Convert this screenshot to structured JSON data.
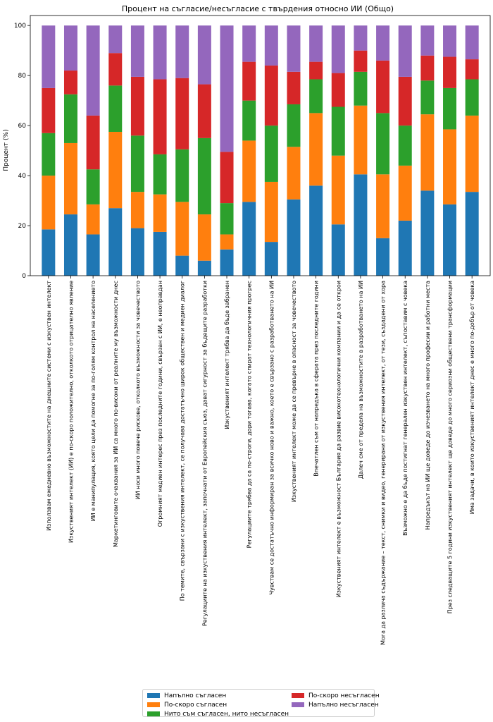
{
  "chart_data": {
    "type": "bar",
    "stacked": true,
    "title": "Процент на съгласие/несъгласие с твърдения относно ИИ (Общо)",
    "ylabel": "Процент (%)",
    "xlabel": "",
    "ylim": [
      0,
      104
    ],
    "yticks": [
      "0",
      "20",
      "40",
      "60",
      "80",
      "100"
    ],
    "grid": false,
    "legend_position": "bottom-center",
    "categories": [
      "Използвам ежедневно възможностите на днешните системи с изкуствен интелект",
      "Изкуственият интелект (ИИ) е по-скоро положително, отколкото отрицателно явление",
      "ИИ е манипулация, която цели да помогне за по-голям контрол на населението",
      "Маркетинговите очаквания за ИИ са много по-високи от реалните му възможности днес",
      "ИИ носи много повече рискове, отколкото възможности за човечеството",
      "Огромният медиен интерес през последните години, свързан с ИИ, е неоправдан",
      "По темите, свързани с изкуствения интелект, се получава достатъчно широк обществен и медиен диалог",
      "Регулациите на изкуствения интелект, започнати от Европейския съюз, дават сигурност за бъдещите разработки",
      "Изкуственият интелект трябва да бъде забранен",
      "Регулациите трябва да са по-строги, дори тогава, когато спират технологичния прогрес",
      "Чувствам се достатъчно информиран за всичко ново и важно, което е свързано с разработването на ИИ",
      "Изкуственият интелект може да се превърне в опасност за човечеството",
      "Впечатлен съм от напредъка в сферата през последните години",
      "Изкуственият интелект е възможност България да развие високотехнологични компании и да се открои",
      "Далеч сме от предела на възможностите в разработването на ИИ",
      "Мога да различа съдържание – текст, снимки и видео, генерирани от изкуствения интелект, от тези, създадени от хора",
      "Възможно е да бъде постигнат генерален изкуствен интелект, съпоставим с човека",
      "Напредъкът на ИИ ще доведе до изчезването на много професии и работни места",
      "През следващите 5 години изкуственият интелект ще доведе до много сериозни обществени трансформации",
      "Има задачи, в които изкуственият интелект днес е много по-добър от човека"
    ],
    "series": [
      {
        "name": "Напълно съгласен",
        "color": "#1f77b4",
        "values": [
          18.5,
          24.5,
          16.5,
          27.0,
          19.0,
          17.5,
          8.0,
          6.0,
          10.5,
          29.5,
          13.5,
          30.5,
          36.0,
          20.5,
          40.5,
          15.0,
          22.0,
          34.0,
          28.5,
          33.5
        ]
      },
      {
        "name": "По-скоро съгласен",
        "color": "#ff7f0e",
        "values": [
          21.5,
          28.5,
          12.0,
          30.5,
          14.5,
          15.0,
          21.5,
          18.5,
          6.0,
          24.5,
          24.0,
          21.0,
          29.0,
          27.5,
          27.5,
          25.5,
          22.0,
          30.5,
          30.0,
          30.5
        ]
      },
      {
        "name": "Нито съм съгласен, нито несъгласен",
        "color": "#2ca02c",
        "values": [
          17.0,
          19.5,
          14.0,
          18.5,
          22.5,
          16.0,
          21.0,
          30.5,
          12.5,
          16.0,
          22.5,
          17.0,
          13.5,
          19.5,
          13.5,
          24.5,
          16.0,
          13.5,
          16.5,
          14.5
        ]
      },
      {
        "name": "По-скоро несъгласен",
        "color": "#d62728",
        "values": [
          18.0,
          9.5,
          21.5,
          13.0,
          23.5,
          30.0,
          28.5,
          21.5,
          20.5,
          15.5,
          24.0,
          13.0,
          7.0,
          13.5,
          8.5,
          21.0,
          19.5,
          10.0,
          12.5,
          8.0
        ]
      },
      {
        "name": "Напълно несъгласен",
        "color": "#9467bd",
        "values": [
          25.0,
          18.0,
          36.0,
          11.0,
          20.5,
          21.5,
          21.0,
          23.5,
          50.5,
          14.5,
          16.0,
          18.5,
          14.5,
          19.0,
          10.0,
          14.0,
          20.5,
          12.0,
          12.5,
          13.5
        ]
      }
    ]
  }
}
